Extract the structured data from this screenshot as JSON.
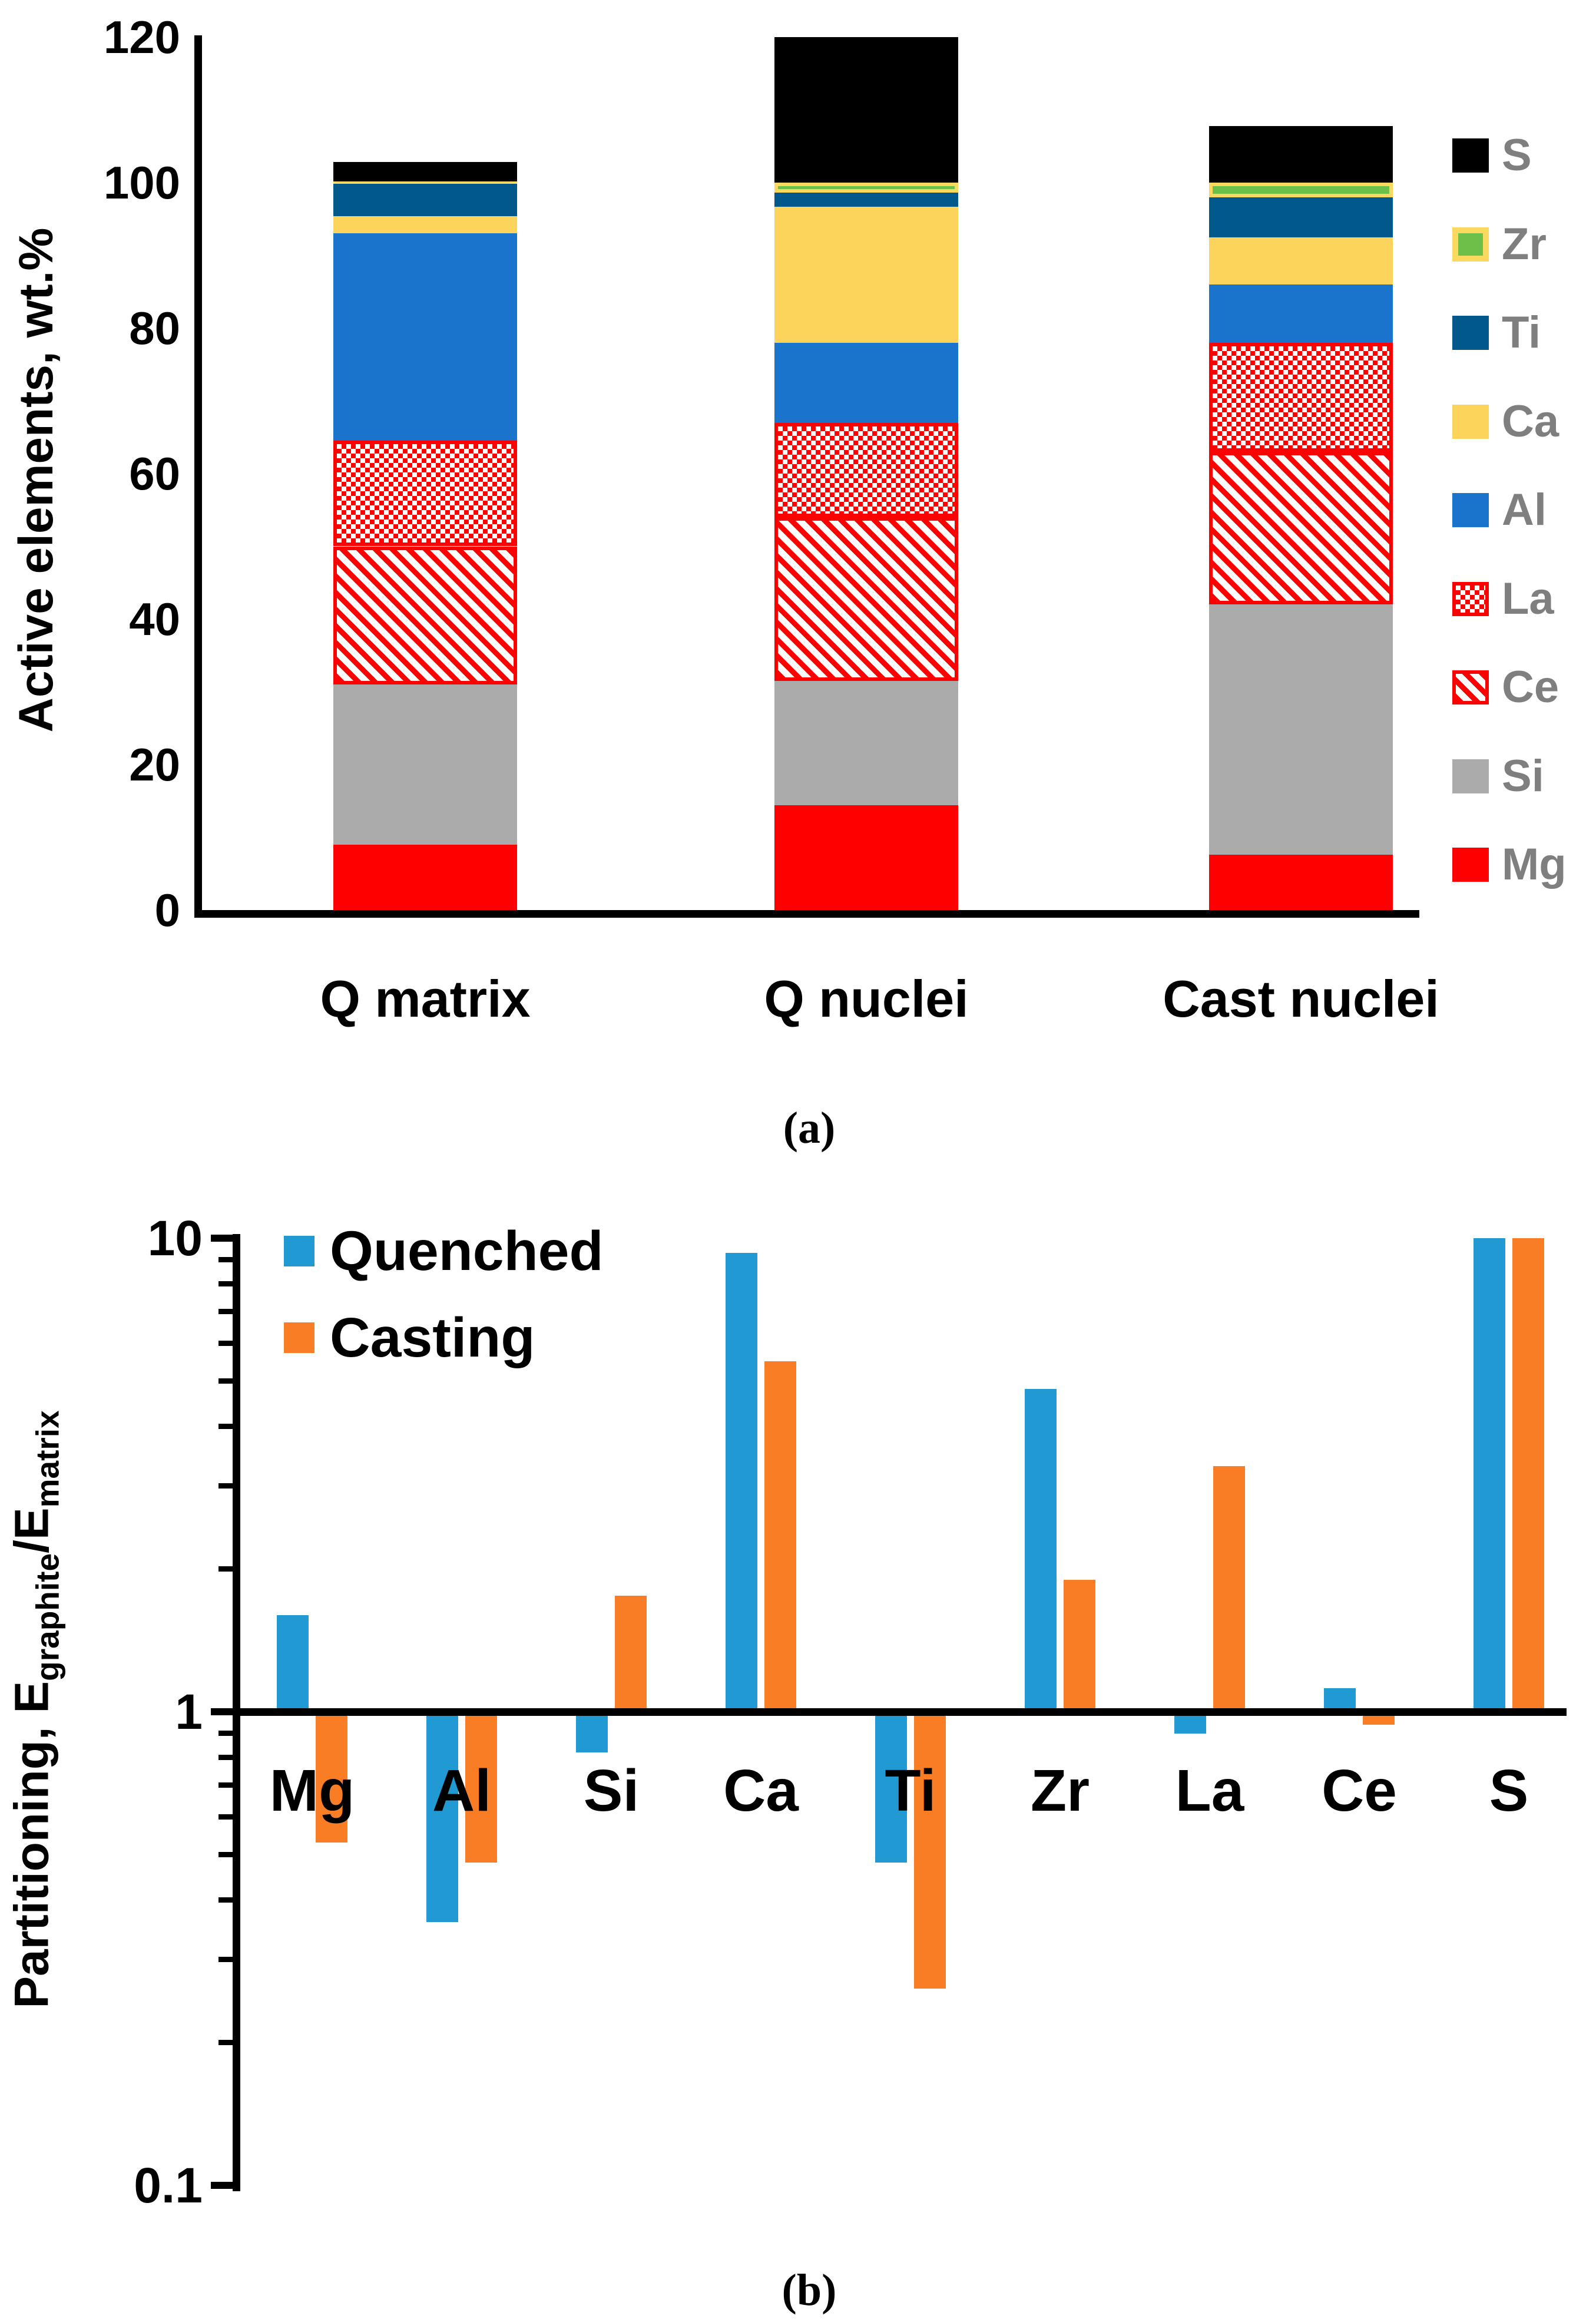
{
  "chart_data": [
    {
      "type": "bar",
      "stacked": true,
      "panel": "a",
      "caption": "(a)",
      "ylabel": "Active elements, wt.%",
      "ylim": [
        0,
        120
      ],
      "yticks": [
        0,
        20,
        40,
        60,
        80,
        100,
        120
      ],
      "ytick_labels": [
        "0",
        "20",
        "40",
        "60",
        "80",
        "100",
        "120"
      ],
      "grid": false,
      "legend_position": "right",
      "legend_top_to_bottom": [
        "S",
        "Zr",
        "Ti",
        "Ca",
        "Al",
        "La",
        "Ce",
        "Si",
        "Mg"
      ],
      "categories": [
        "Q matrix",
        "Q nuclei",
        "Cast nuclei"
      ],
      "series": [
        {
          "name": "Mg",
          "color": "#FE0000",
          "pattern": "solid",
          "values": [
            9.0,
            14.4,
            7.6
          ]
        },
        {
          "name": "Si",
          "color": "#ABABAB",
          "pattern": "solid",
          "values": [
            22.0,
            17.1,
            34.4
          ]
        },
        {
          "name": "Ce",
          "color": "#FE0000",
          "pattern": "diagonal",
          "values": [
            19.0,
            22.5,
            21.0
          ]
        },
        {
          "name": "La",
          "color": "#FE0000",
          "pattern": "crosshatch",
          "values": [
            14.5,
            13.0,
            15.0
          ]
        },
        {
          "name": "Al",
          "color": "#1B74CB",
          "pattern": "solid",
          "values": [
            28.5,
            11.0,
            8.0
          ]
        },
        {
          "name": "Ca",
          "color": "#FCD45B",
          "pattern": "solid",
          "values": [
            2.4,
            18.7,
            6.5
          ]
        },
        {
          "name": "Ti",
          "color": "#01588B",
          "pattern": "solid",
          "values": [
            4.4,
            1.9,
            5.5
          ]
        },
        {
          "name": "Zr",
          "color": "#6CC04A",
          "pattern": "solid-yellow-border",
          "values": [
            0.4,
            1.4,
            2.0
          ]
        },
        {
          "name": "S",
          "color": "#000000",
          "pattern": "solid",
          "values": [
            2.6,
            20.0,
            7.8
          ]
        }
      ],
      "stack_totals": [
        102.8,
        120.0,
        107.8
      ]
    },
    {
      "type": "bar",
      "stacked": false,
      "panel": "b",
      "caption": "(b)",
      "yscale": "log",
      "baseline": 1,
      "ylabel_parts": {
        "prefix": "Partitioning, E",
        "sub1": "graphite",
        "mid": "/E",
        "sub2": "matrix"
      },
      "ylim": [
        0.1,
        10
      ],
      "yticks": [
        0.1,
        1,
        10
      ],
      "ytick_labels": [
        "0.1",
        "1",
        "10"
      ],
      "grid": false,
      "legend_position": "top-left-inside",
      "categories": [
        "Mg",
        "Al",
        "Si",
        "Ca",
        "Ti",
        "Zr",
        "La",
        "Ce",
        "S"
      ],
      "series": [
        {
          "name": "Quenched",
          "color": "#2199D2",
          "values": [
            1.6,
            0.36,
            0.82,
            9.3,
            0.48,
            4.8,
            0.9,
            1.12,
            10
          ]
        },
        {
          "name": "Casting",
          "color": "#F97D25",
          "values": [
            0.53,
            0.48,
            1.76,
            5.5,
            0.26,
            1.9,
            3.3,
            0.94,
            10
          ]
        }
      ]
    }
  ],
  "colors": {
    "mg_red": "#FE0000",
    "si_gray": "#ABABAB",
    "al_blue": "#1B74CB",
    "ca_yellow": "#FCD45B",
    "ti_teal": "#01588B",
    "zr_green": "#6CC04A",
    "zr_border_yellow": "#FAD95E",
    "s_black": "#000000",
    "hatch_red": "#FE0000",
    "quenched_blue": "#2199D2",
    "casting_orange": "#F97D25",
    "legend_a_text_gray": "#7F7F7F",
    "axis_black": "#000000"
  }
}
